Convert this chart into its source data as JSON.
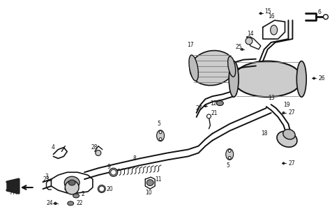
{
  "bg_color": "#ffffff",
  "line_color": "#111111",
  "gray_light": "#cccccc",
  "gray_med": "#888888",
  "gray_dark": "#444444",
  "fs": 5.5,
  "lw_pipe": 1.4,
  "lw_part": 1.0,
  "lw_thin": 0.7
}
